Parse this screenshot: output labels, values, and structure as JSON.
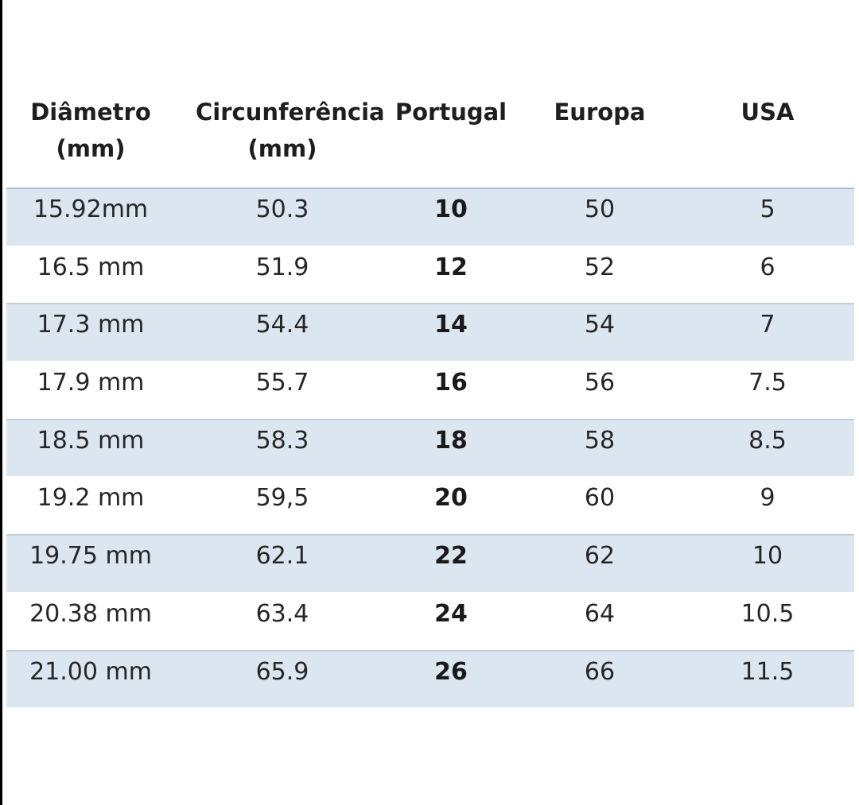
{
  "table": {
    "headers": [
      [
        "Diâmetro",
        "(mm)"
      ],
      [
        "Circunferência",
        "(mm)"
      ],
      [
        "Portugal"
      ],
      [
        "Europa"
      ],
      [
        "USA"
      ]
    ],
    "rows": [
      [
        "15.92mm",
        "50.3",
        "10",
        "50",
        "5"
      ],
      [
        "16.5 mm",
        "51.9",
        "12",
        "52",
        "6"
      ],
      [
        "17.3 mm",
        "54.4",
        "14",
        "54",
        "7"
      ],
      [
        "17.9 mm",
        "55.7",
        "16",
        "56",
        "7.5"
      ],
      [
        "18.5 mm",
        "58.3",
        "18",
        "58",
        "8.5"
      ],
      [
        "19.2 mm",
        "59,5",
        "20",
        "60",
        "9"
      ],
      [
        "19.75 mm",
        "62.1",
        "22",
        "62",
        "10"
      ],
      [
        "20.38 mm",
        "63.4",
        "24",
        "64",
        "10.5"
      ],
      [
        "21.00 mm",
        "65.9",
        "26",
        "66",
        "11.5"
      ]
    ],
    "row_shading": [
      "shaded",
      "plain",
      "shaded",
      "plain",
      "shaded",
      "plain",
      "shaded",
      "plain",
      "shaded"
    ],
    "colors": {
      "shaded_row": "#dce6f1",
      "plain_row": "#ffffff",
      "text": "#262626"
    }
  }
}
